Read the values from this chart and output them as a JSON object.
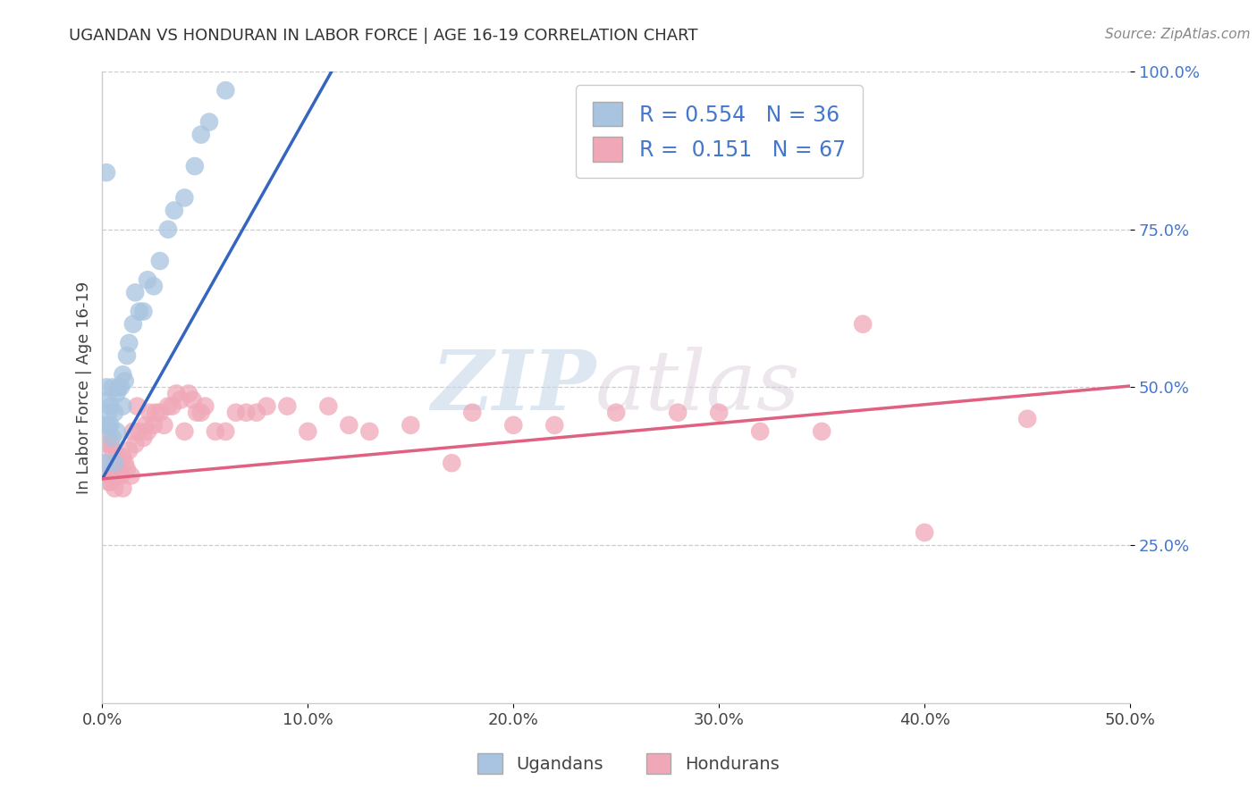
{
  "title": "UGANDAN VS HONDURAN IN LABOR FORCE | AGE 16-19 CORRELATION CHART",
  "source": "Source: ZipAtlas.com",
  "ylabel": "In Labor Force | Age 16-19",
  "xlim": [
    0.0,
    0.5
  ],
  "ylim": [
    0.0,
    1.0
  ],
  "xtick_labels": [
    "0.0%",
    "10.0%",
    "20.0%",
    "30.0%",
    "40.0%",
    "50.0%"
  ],
  "xtick_vals": [
    0.0,
    0.1,
    0.2,
    0.3,
    0.4,
    0.5
  ],
  "ytick_labels": [
    "25.0%",
    "50.0%",
    "75.0%",
    "100.0%"
  ],
  "ytick_vals": [
    0.25,
    0.5,
    0.75,
    1.0
  ],
  "ugandan_color": "#a8c4e0",
  "honduran_color": "#f0a8b8",
  "ugandan_line_color": "#3565c0",
  "honduran_line_color": "#e06080",
  "R_ugandan": "0.554",
  "N_ugandan": "36",
  "R_honduran": "0.151",
  "N_honduran": "67",
  "ugandan_x": [
    0.001,
    0.001,
    0.002,
    0.002,
    0.003,
    0.003,
    0.003,
    0.004,
    0.004,
    0.005,
    0.005,
    0.006,
    0.006,
    0.007,
    0.007,
    0.008,
    0.009,
    0.01,
    0.01,
    0.011,
    0.012,
    0.013,
    0.015,
    0.016,
    0.018,
    0.02,
    0.022,
    0.025,
    0.028,
    0.032,
    0.035,
    0.04,
    0.045,
    0.048,
    0.052,
    0.06
  ],
  "ugandan_y": [
    0.38,
    0.44,
    0.5,
    0.84,
    0.44,
    0.46,
    0.48,
    0.44,
    0.47,
    0.42,
    0.5,
    0.38,
    0.46,
    0.43,
    0.49,
    0.5,
    0.5,
    0.47,
    0.52,
    0.51,
    0.55,
    0.57,
    0.6,
    0.65,
    0.62,
    0.62,
    0.67,
    0.66,
    0.7,
    0.75,
    0.78,
    0.8,
    0.85,
    0.9,
    0.92,
    0.97
  ],
  "honduran_x": [
    0.001,
    0.002,
    0.002,
    0.003,
    0.003,
    0.004,
    0.004,
    0.005,
    0.005,
    0.006,
    0.006,
    0.007,
    0.007,
    0.008,
    0.009,
    0.01,
    0.01,
    0.011,
    0.012,
    0.013,
    0.014,
    0.015,
    0.016,
    0.017,
    0.018,
    0.02,
    0.021,
    0.022,
    0.023,
    0.025,
    0.026,
    0.028,
    0.03,
    0.032,
    0.034,
    0.036,
    0.038,
    0.04,
    0.042,
    0.044,
    0.046,
    0.048,
    0.05,
    0.055,
    0.06,
    0.065,
    0.07,
    0.075,
    0.08,
    0.09,
    0.1,
    0.11,
    0.12,
    0.13,
    0.15,
    0.17,
    0.18,
    0.2,
    0.22,
    0.25,
    0.28,
    0.3,
    0.32,
    0.35,
    0.37,
    0.4,
    0.45
  ],
  "honduran_y": [
    0.38,
    0.36,
    0.41,
    0.35,
    0.42,
    0.35,
    0.41,
    0.36,
    0.4,
    0.34,
    0.38,
    0.36,
    0.39,
    0.37,
    0.36,
    0.34,
    0.39,
    0.38,
    0.37,
    0.4,
    0.36,
    0.43,
    0.41,
    0.47,
    0.43,
    0.42,
    0.44,
    0.43,
    0.46,
    0.44,
    0.46,
    0.46,
    0.44,
    0.47,
    0.47,
    0.49,
    0.48,
    0.43,
    0.49,
    0.48,
    0.46,
    0.46,
    0.47,
    0.43,
    0.43,
    0.46,
    0.46,
    0.46,
    0.47,
    0.47,
    0.43,
    0.47,
    0.44,
    0.43,
    0.44,
    0.38,
    0.46,
    0.44,
    0.44,
    0.46,
    0.46,
    0.46,
    0.43,
    0.43,
    0.6,
    0.27,
    0.45
  ],
  "ugandan_line_x0": 0.0,
  "ugandan_line_y0": 0.355,
  "ugandan_line_x1": 0.115,
  "ugandan_line_y1": 1.02,
  "honduran_line_x0": 0.0,
  "honduran_line_y0": 0.355,
  "honduran_line_x1": 0.5,
  "honduran_line_y1": 0.502
}
